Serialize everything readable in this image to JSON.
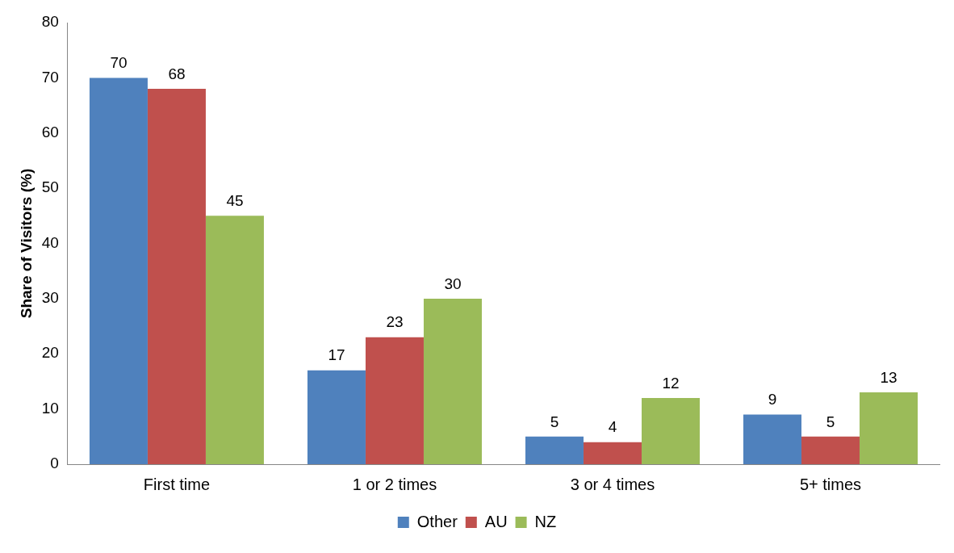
{
  "chart_data": {
    "type": "bar",
    "ylabel": "Share of Visitors (%)",
    "categories": [
      "First time",
      "1 or 2 times",
      "3 or 4 times",
      "5+ times"
    ],
    "series": [
      {
        "name": "Other",
        "color": "#4f81bd",
        "values": [
          70,
          17,
          5,
          9
        ]
      },
      {
        "name": "AU",
        "color": "#c0504d",
        "values": [
          68,
          23,
          4,
          5
        ]
      },
      {
        "name": "NZ",
        "color": "#9bbb59",
        "values": [
          45,
          30,
          12,
          13
        ]
      }
    ],
    "ylim": [
      0,
      80
    ],
    "yticks": [
      0,
      10,
      20,
      30,
      40,
      50,
      60,
      70,
      80
    ],
    "grid": false,
    "legend": "bottom",
    "data_labels": true
  }
}
